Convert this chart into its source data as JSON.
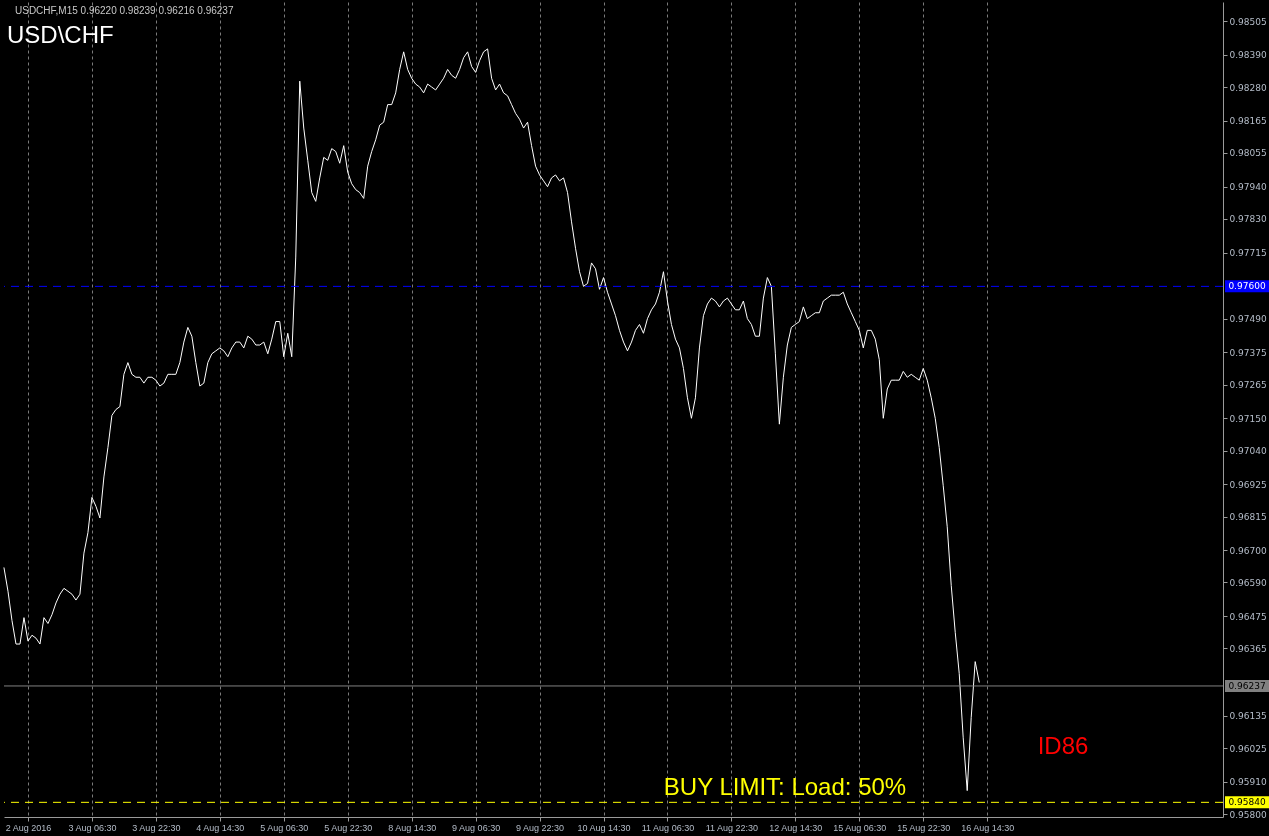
{
  "chart_data": {
    "type": "line",
    "title": "USD\\CHF",
    "annotations": [
      "USDCHF,M15  0.96220 0.98239 0.96216 0.96237",
      "ID86",
      {
        "text": "BUY LIMIT: Load: 50%",
        "y": 0.9584
      }
    ],
    "categories": [
      null,
      null,
      null,
      null,
      null,
      null,
      "2 Aug 2016",
      null,
      null,
      null,
      null,
      null,
      null,
      null,
      null,
      null,
      null,
      null,
      null,
      null,
      null,
      null,
      "3 Aug 06:30",
      null,
      null,
      null,
      null,
      null,
      null,
      null,
      null,
      null,
      null,
      null,
      null,
      null,
      null,
      null,
      "3 Aug 22:30",
      null,
      null,
      null,
      null,
      null,
      null,
      null,
      null,
      null,
      null,
      null,
      null,
      null,
      null,
      null,
      "4 Aug 14:30",
      null,
      null,
      null,
      null,
      null,
      null,
      null,
      null,
      null,
      null,
      null,
      null,
      null,
      null,
      null,
      "5 Aug 06:30",
      null,
      null,
      null,
      null,
      null,
      null,
      null,
      null,
      null,
      null,
      null,
      null,
      null,
      null,
      null,
      "5 Aug 22:30",
      null,
      null,
      null,
      null,
      null,
      null,
      null,
      null,
      null,
      null,
      null,
      null,
      null,
      null,
      null,
      "8 Aug 14:30",
      null,
      null,
      null,
      null,
      null,
      null,
      null,
      null,
      null,
      null,
      null,
      null,
      null,
      null,
      null,
      "9 Aug 06:30",
      null,
      null,
      null,
      null,
      null,
      null,
      null,
      null,
      null,
      null,
      null,
      null,
      null,
      null,
      null,
      "9 Aug 22:30",
      null,
      null,
      null,
      null,
      null,
      null,
      null,
      null,
      null,
      null,
      null,
      null,
      null,
      null,
      null,
      "10 Aug 14:30",
      null,
      null,
      null,
      null,
      null,
      null,
      null,
      null,
      null,
      null,
      null,
      null,
      null,
      null,
      null,
      "11 Aug 06:30",
      null,
      null,
      null,
      null,
      null,
      null,
      null,
      null,
      null,
      null,
      null,
      null,
      null,
      null,
      null,
      "11 Aug 22:30",
      null,
      null,
      null,
      null,
      null,
      null,
      null,
      null,
      null,
      null,
      null,
      null,
      null,
      null,
      null,
      "12 Aug 14:30",
      null,
      null,
      null,
      null,
      null,
      null,
      null,
      null,
      null,
      null,
      null,
      null,
      null,
      null,
      null,
      "15 Aug 06:30",
      null,
      null,
      null,
      null,
      null,
      null,
      null,
      null,
      null,
      null,
      null,
      null,
      null,
      null,
      null,
      "15 Aug 22:30",
      null,
      null,
      null,
      null,
      null,
      null,
      null,
      null,
      null,
      null,
      null,
      null,
      null,
      null,
      null,
      "16 Aug 14:30",
      null,
      null,
      null,
      null,
      null,
      null,
      null,
      null,
      null,
      null,
      null,
      null,
      null,
      null,
      null,
      null,
      null,
      null,
      null,
      null,
      null,
      null,
      null,
      null,
      null,
      null,
      null,
      null,
      null,
      null,
      null,
      null,
      null,
      null,
      null,
      null,
      null,
      null,
      null,
      null,
      null,
      null,
      null,
      null,
      null,
      null,
      null,
      null,
      null,
      null,
      null,
      null,
      null,
      null,
      null,
      null,
      null,
      null,
      null
    ],
    "series": [
      {
        "color": "#ffffff",
        "values": [
          0.9664,
          0.9656,
          0.9646,
          0.9638,
          0.9638,
          0.9647,
          0.9639,
          0.9641,
          0.964,
          0.9638,
          0.9647,
          0.9645,
          0.9648,
          0.9652,
          0.9655,
          0.9657,
          0.9656,
          0.9655,
          0.9653,
          0.9655,
          0.9669,
          0.9676,
          0.9688,
          0.9685,
          0.9681,
          0.9695,
          0.9705,
          0.9716,
          0.9718,
          0.9719,
          0.973,
          0.9734,
          0.973,
          0.9729,
          0.9729,
          0.9727,
          0.9729,
          0.9729,
          0.9728,
          0.9726,
          0.9727,
          0.973,
          0.973,
          0.973,
          0.9734,
          0.9741,
          0.9746,
          0.9743,
          0.9734,
          0.9726,
          0.9727,
          0.9734,
          0.9737,
          0.9738,
          0.9739,
          0.9738,
          0.9736,
          0.9739,
          0.9741,
          0.9741,
          0.9739,
          0.9743,
          0.9742,
          0.974,
          0.974,
          0.9741,
          0.9737,
          0.9742,
          0.9748,
          0.9748,
          0.9736,
          0.9744,
          0.9736,
          0.977,
          0.983,
          0.9814,
          0.9803,
          0.9792,
          0.9789,
          0.9797,
          0.9804,
          0.9803,
          0.9807,
          0.9806,
          0.9802,
          0.9808,
          0.9799,
          0.9795,
          0.9793,
          0.9792,
          0.979,
          0.9801,
          0.9806,
          0.981,
          0.9815,
          0.9816,
          0.9822,
          0.9822,
          0.9826,
          0.9834,
          0.984,
          0.9834,
          0.9831,
          0.9829,
          0.9828,
          0.9826,
          0.9829,
          0.9828,
          0.9827,
          0.9829,
          0.9831,
          0.9834,
          0.9832,
          0.9831,
          0.9834,
          0.9838,
          0.984,
          0.9835,
          0.9833,
          0.9837,
          0.984,
          0.9841,
          0.9831,
          0.9827,
          0.9829,
          0.9826,
          0.9825,
          0.9822,
          0.9819,
          0.9817,
          0.9814,
          0.9816,
          0.9808,
          0.9801,
          0.9798,
          0.9796,
          0.9794,
          0.9797,
          0.9798,
          0.9796,
          0.9797,
          0.9792,
          0.9782,
          0.9773,
          0.9765,
          0.976,
          0.9761,
          0.9768,
          0.9766,
          0.9759,
          0.9763,
          0.9758,
          0.9754,
          0.975,
          0.9745,
          0.9741,
          0.9738,
          0.9741,
          0.9745,
          0.9747,
          0.9744,
          0.9749,
          0.9752,
          0.9754,
          0.9758,
          0.9765,
          0.9755,
          0.9747,
          0.9742,
          0.9739,
          0.9732,
          0.9722,
          0.9715,
          0.9722,
          0.9739,
          0.975,
          0.9754,
          0.9756,
          0.9755,
          0.9753,
          0.9755,
          0.9756,
          0.9754,
          0.9752,
          0.9752,
          0.9755,
          0.9749,
          0.9747,
          0.9743,
          0.9743,
          0.9756,
          0.9763,
          0.976,
          0.9737,
          0.9713,
          0.9729,
          0.974,
          0.9746,
          0.9747,
          0.9748,
          0.9753,
          0.9749,
          0.975,
          0.9751,
          0.9751,
          0.9755,
          0.9756,
          0.9757,
          0.9757,
          0.9757,
          0.9758,
          0.9754,
          0.9751,
          0.9748,
          0.9745,
          0.9739,
          0.9745,
          0.9745,
          0.9742,
          0.9735,
          0.9715,
          0.9725,
          0.9728,
          0.9728,
          0.9728,
          0.9731,
          0.9729,
          0.973,
          0.9729,
          0.9728,
          0.9732,
          0.9728,
          0.9722,
          0.9715,
          0.9705,
          0.9692,
          0.9678,
          0.9658,
          0.9642,
          0.9628,
          0.9606,
          0.9588,
          0.9613,
          0.9632,
          0.9625,
          null,
          null,
          null,
          null,
          null,
          null,
          null,
          null,
          null,
          null,
          null,
          null,
          null,
          null,
          null,
          null,
          null,
          null,
          null,
          null,
          null,
          null,
          null,
          null,
          null,
          null,
          null,
          null,
          null,
          null,
          null,
          null,
          null,
          null,
          null,
          null,
          null,
          null,
          null,
          null,
          null,
          null,
          null,
          null,
          null,
          null,
          null,
          null,
          null,
          null,
          null,
          null,
          null,
          null,
          null,
          null,
          null,
          null,
          null,
          null,
          null
        ]
      }
    ],
    "ylim": [
      0.9579,
      0.9857
    ],
    "yticks": [
      0.98505,
      {
        "value": 0.9839,
        "label": "0.98390"
      },
      {
        "value": 0.9828,
        "label": "0.98280"
      },
      0.98165,
      0.98055,
      {
        "value": 0.9794,
        "label": "0.97940"
      },
      {
        "value": 0.9783,
        "label": "0.97830"
      },
      0.97715,
      {
        "value": 0.9749,
        "label": "0.97490"
      },
      0.97375,
      0.97265,
      {
        "value": 0.9715,
        "label": "0.97150"
      },
      {
        "value": 0.9704,
        "label": "0.97040"
      },
      0.96925,
      0.96815,
      {
        "value": 0.967,
        "label": "0.96700"
      },
      {
        "value": 0.9659,
        "label": "0.96590"
      },
      0.96475,
      0.96365,
      0.96135,
      0.96025,
      {
        "value": 0.9591,
        "label": "0.95910"
      },
      {
        "value": 0.958,
        "label": "0.95800"
      }
    ],
    "ref_lines": [
      {
        "axis": "y",
        "value": 0.976,
        "color": "#0000ff",
        "line_style": "dashed",
        "label": "0.97600"
      },
      {
        "axis": "y",
        "value": 0.96237,
        "color": "#808080",
        "line_style": "solid",
        "label": "0.96237"
      },
      {
        "axis": "y",
        "value": 0.9584,
        "color": "#ffff00",
        "line_style": "dashed",
        "label": "0.95840"
      }
    ],
    "grid": "x"
  }
}
